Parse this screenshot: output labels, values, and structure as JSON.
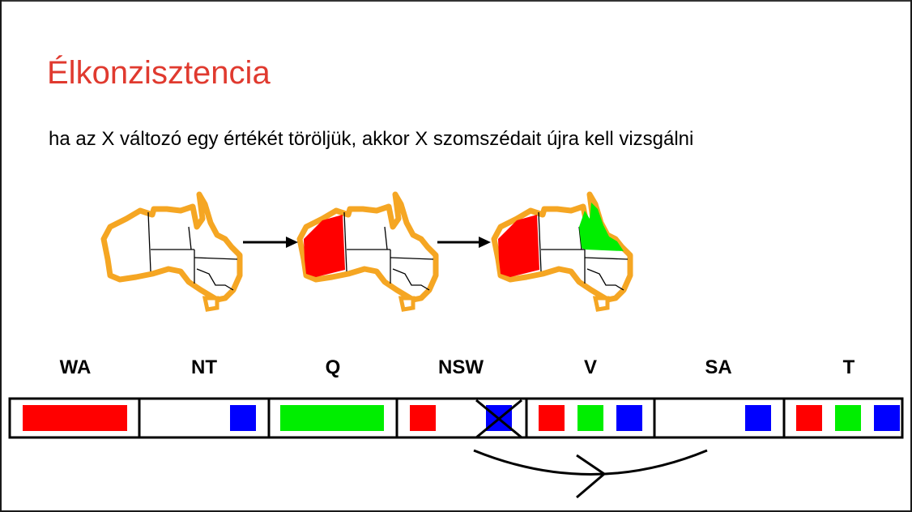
{
  "slide": {
    "title": "Élkonzisztencia",
    "subtitle": "ha az X változó egy értékét töröljük, akkor X szomszédait újra kell vizsgálni"
  },
  "variables": [
    {
      "label": "WA",
      "domain": [
        "red"
      ]
    },
    {
      "label": "NT",
      "domain": [
        "blue"
      ]
    },
    {
      "label": "Q",
      "domain": [
        "green"
      ]
    },
    {
      "label": "NSW",
      "domain": [
        "red",
        "blue (crossed out)"
      ]
    },
    {
      "label": "V",
      "domain": [
        "red",
        "green",
        "blue"
      ]
    },
    {
      "label": "SA",
      "domain": [
        "blue"
      ]
    },
    {
      "label": "T",
      "domain": [
        "red",
        "green",
        "blue"
      ]
    }
  ],
  "colors": {
    "title": "#e03a2f",
    "map_outline": "#f5a623",
    "red": "#ff0000",
    "green": "#00ee00",
    "blue": "#0000ff"
  },
  "icons": [
    "australia-map",
    "arrow-right",
    "cross-out",
    "curved-arc-arrow"
  ]
}
